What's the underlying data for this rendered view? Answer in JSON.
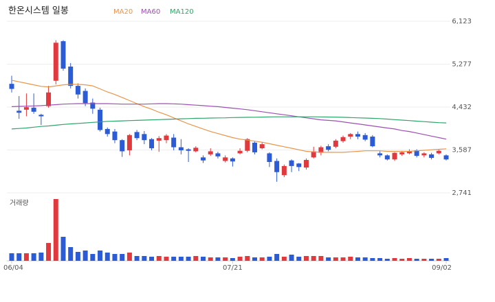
{
  "chart_data": {
    "type": "candlestick",
    "title": "한온시스템 일봉",
    "volume_label": "거래량",
    "categories": [
      "06/04",
      null,
      null,
      null,
      null,
      null,
      null,
      null,
      null,
      null,
      null,
      null,
      null,
      null,
      null,
      null,
      null,
      null,
      null,
      null,
      null,
      null,
      null,
      null,
      null,
      null,
      null,
      null,
      null,
      null,
      "07/21",
      null,
      null,
      null,
      null,
      null,
      null,
      null,
      null,
      null,
      null,
      null,
      null,
      null,
      null,
      null,
      null,
      null,
      null,
      null,
      null,
      null,
      null,
      null,
      null,
      null,
      null,
      null,
      null,
      "09/02"
    ],
    "open": [
      4890,
      4360,
      4380,
      4420,
      4280,
      4450,
      4950,
      5730,
      5230,
      4850,
      4750,
      4520,
      4380,
      4000,
      3950,
      3780,
      3580,
      3940,
      3900,
      3800,
      3770,
      3780,
      3830,
      3640,
      3600,
      3560,
      3440,
      3500,
      3520,
      3370,
      3420,
      3520,
      3570,
      3730,
      3620,
      3520,
      3370,
      3090,
      3380,
      3320,
      3240,
      3440,
      3530,
      3660,
      3650,
      3760,
      3850,
      3900,
      3880,
      3850,
      3520,
      3480,
      3400,
      3500,
      3520,
      3580,
      3480,
      3500,
      3520,
      3480
    ],
    "close": [
      4790,
      4320,
      4430,
      4340,
      4250,
      4720,
      5700,
      5190,
      4850,
      4680,
      4510,
      4400,
      3980,
      3900,
      3780,
      3560,
      3880,
      3820,
      3780,
      3620,
      3820,
      3870,
      3640,
      3580,
      3570,
      3630,
      3380,
      3560,
      3460,
      3440,
      3360,
      3570,
      3800,
      3540,
      3700,
      3350,
      3150,
      3270,
      3270,
      3250,
      3390,
      3560,
      3640,
      3590,
      3770,
      3840,
      3900,
      3850,
      3790,
      3660,
      3480,
      3400,
      3530,
      3540,
      3560,
      3470,
      3520,
      3430,
      3570,
      3400
    ],
    "high": [
      5050,
      4650,
      4700,
      4700,
      4300,
      4850,
      5750,
      5750,
      5300,
      4900,
      4800,
      4600,
      4420,
      4030,
      4000,
      3800,
      3900,
      3980,
      3960,
      3820,
      3860,
      3900,
      3900,
      3800,
      3620,
      3660,
      3480,
      3620,
      3550,
      3480,
      3440,
      3620,
      3820,
      3750,
      3740,
      3540,
      3420,
      3300,
      3400,
      3330,
      3420,
      3650,
      3670,
      3700,
      3800,
      3870,
      3920,
      3950,
      3920,
      3880,
      3560,
      3500,
      3540,
      3570,
      3600,
      3600,
      3540,
      3530,
      3590,
      3500
    ],
    "low": [
      4720,
      4200,
      4250,
      4300,
      4080,
      4420,
      4880,
      5150,
      4800,
      4600,
      4450,
      4300,
      3950,
      3850,
      3720,
      3450,
      3480,
      3780,
      3700,
      3580,
      3550,
      3720,
      3580,
      3500,
      3350,
      3540,
      3330,
      3470,
      3420,
      3340,
      3260,
      3500,
      3540,
      3500,
      3600,
      3250,
      2960,
      3050,
      3150,
      3170,
      3200,
      3420,
      3480,
      3560,
      3620,
      3730,
      3800,
      3800,
      3760,
      3640,
      3440,
      3380,
      3370,
      3470,
      3500,
      3440,
      3440,
      3400,
      3500,
      3380
    ],
    "volume": [
      330000,
      330000,
      330000,
      330000,
      360000,
      780000,
      2700000,
      1050000,
      600000,
      390000,
      450000,
      300000,
      450000,
      360000,
      300000,
      300000,
      360000,
      210000,
      210000,
      180000,
      210000,
      180000,
      180000,
      180000,
      180000,
      210000,
      180000,
      150000,
      150000,
      150000,
      120000,
      180000,
      210000,
      150000,
      150000,
      180000,
      300000,
      180000,
      270000,
      180000,
      210000,
      210000,
      210000,
      150000,
      150000,
      150000,
      180000,
      150000,
      150000,
      120000,
      120000,
      90000,
      120000,
      90000,
      120000,
      90000,
      90000,
      90000,
      90000,
      120000
    ],
    "series": [
      {
        "name": "MA20",
        "color": "#e8954a",
        "values": [
          4960,
          4930,
          4900,
          4870,
          4840,
          4830,
          4850,
          4870,
          4880,
          4880,
          4870,
          4850,
          4790,
          4730,
          4680,
          4620,
          4560,
          4500,
          4440,
          4390,
          4330,
          4280,
          4220,
          4160,
          4100,
          4050,
          4000,
          3950,
          3910,
          3870,
          3830,
          3800,
          3780,
          3760,
          3740,
          3710,
          3680,
          3650,
          3620,
          3590,
          3560,
          3550,
          3540,
          3540,
          3540,
          3540,
          3550,
          3560,
          3570,
          3570,
          3570,
          3560,
          3560,
          3560,
          3560,
          3570,
          3580,
          3590,
          3600,
          3610
        ]
      },
      {
        "name": "MA60",
        "color": "#9b4fb0",
        "values": [
          4440,
          4445,
          4450,
          4455,
          4460,
          4470,
          4480,
          4490,
          4495,
          4500,
          4500,
          4500,
          4500,
          4500,
          4495,
          4490,
          4490,
          4490,
          4490,
          4495,
          4500,
          4500,
          4495,
          4490,
          4480,
          4470,
          4460,
          4450,
          4440,
          4425,
          4410,
          4395,
          4380,
          4360,
          4340,
          4320,
          4300,
          4280,
          4260,
          4240,
          4220,
          4200,
          4180,
          4170,
          4160,
          4140,
          4120,
          4100,
          4080,
          4060,
          4040,
          4020,
          4000,
          3970,
          3950,
          3920,
          3890,
          3860,
          3830,
          3800
        ]
      },
      {
        "name": "MA120",
        "color": "#2ea36a",
        "values": [
          4000,
          4010,
          4020,
          4035,
          4050,
          4060,
          4075,
          4090,
          4100,
          4110,
          4120,
          4130,
          4140,
          4150,
          4155,
          4160,
          4165,
          4170,
          4175,
          4180,
          4185,
          4190,
          4195,
          4200,
          4205,
          4210,
          4212,
          4215,
          4218,
          4220,
          4225,
          4228,
          4230,
          4232,
          4235,
          4238,
          4240,
          4240,
          4240,
          4240,
          4240,
          4240,
          4238,
          4236,
          4234,
          4230,
          4225,
          4220,
          4215,
          4210,
          4205,
          4195,
          4185,
          4175,
          4165,
          4155,
          4145,
          4135,
          4125,
          4120
        ]
      }
    ],
    "up_color": "#e0393e",
    "down_color": "#2c5bd6",
    "ylim": [
      2741,
      6123
    ],
    "yticks": [
      {
        "value": 2741,
        "label": "2,741"
      },
      {
        "value": 3587,
        "label": "3,587"
      },
      {
        "value": 4432,
        "label": "4,432"
      },
      {
        "value": 5277,
        "label": "5,277"
      },
      {
        "value": 6123,
        "label": "6,123"
      }
    ],
    "vlim": [
      0,
      2700000
    ],
    "grid": true
  }
}
